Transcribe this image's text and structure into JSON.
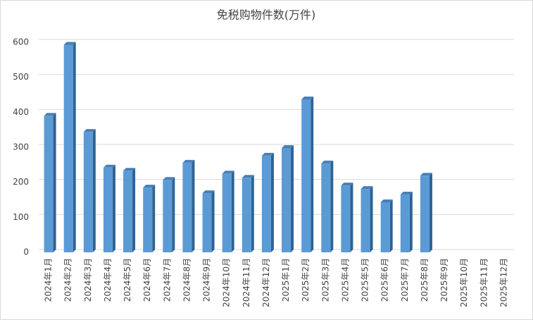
{
  "chart_data": {
    "type": "bar3d",
    "title": "免税购物件数(万件)",
    "categories": [
      "2024年1月",
      "2024年2月",
      "2024年3月",
      "2024年4月",
      "2024年5月",
      "2024年6月",
      "2024年7月",
      "2024年8月",
      "2024年9月",
      "2024年10月",
      "2024年11月",
      "2024年12月",
      "2025年1月",
      "2025年2月",
      "2025年3月",
      "2025年4月",
      "2025年5月",
      "2025年6月",
      "2025年7月",
      "2025年8月",
      "2025年9月",
      "2025年10月",
      "2025年11月",
      "2025年12月"
    ],
    "values": [
      390,
      593,
      344,
      242,
      233,
      185,
      207,
      256,
      169,
      225,
      213,
      276,
      298,
      437,
      254,
      191,
      181,
      143,
      165,
      219,
      null,
      null,
      null,
      null
    ],
    "color": "#5b9bd5",
    "ylim": [
      0,
      600
    ],
    "yticks": [
      0,
      100,
      200,
      300,
      400,
      500,
      600
    ],
    "grid": true
  }
}
